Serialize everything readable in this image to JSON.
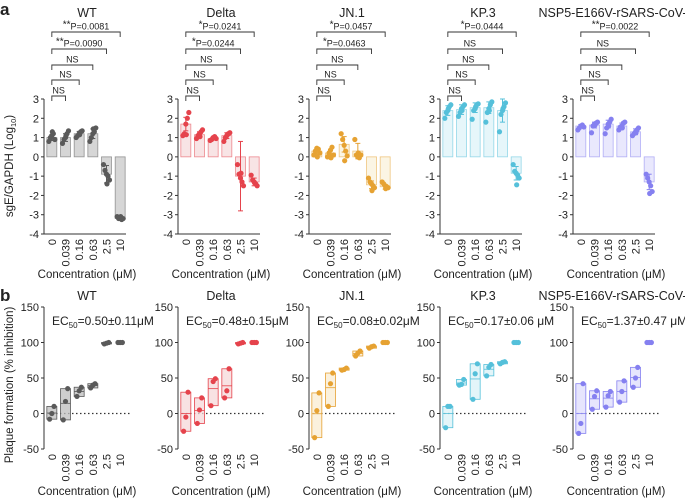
{
  "chart_data": [
    {
      "panel": "a",
      "type": "bar",
      "ylabel": {
        "main": "sgE/GAPDH (Log",
        "sub": "10",
        "end": ")"
      },
      "xlabel": "Concentration (μM)",
      "categories": [
        "0",
        "0.039",
        "0.16",
        "0.63",
        "2.5",
        "10"
      ],
      "ylim": [
        -4,
        3
      ],
      "yticks": [
        3,
        2,
        1,
        0,
        -1,
        -2,
        -3,
        -4
      ],
      "series": [
        {
          "name": "WT",
          "color": "#5a5a5a",
          "fill": "#d6d6d6",
          "values": [
            1.0,
            1.0,
            1.2,
            1.2,
            -0.9,
            -3.2
          ],
          "sd": [
            0.15,
            0.2,
            0.12,
            0.25,
            0.45,
            0.05
          ],
          "points": [
            [
              0.8,
              1.0,
              1.1,
              1.2,
              0.9,
              1.3
            ],
            [
              0.7,
              0.9,
              1.0,
              1.2,
              1.35,
              1.1
            ],
            [
              1.0,
              1.1,
              1.2,
              1.3,
              1.35,
              1.15
            ],
            [
              0.8,
              1.0,
              1.2,
              1.3,
              1.5,
              1.45
            ],
            [
              -0.4,
              -0.7,
              -0.9,
              -1.0,
              -1.2,
              -1.4
            ],
            [
              -3.1,
              -3.2,
              -3.15,
              -3.25,
              -3.2,
              -3.1
            ]
          ],
          "comparisons": [
            {
              "stars": "**",
              "text": "P=0.0081"
            },
            {
              "stars": "**",
              "text": "P=0.0090"
            },
            {
              "stars": "",
              "text": "NS"
            },
            {
              "stars": "",
              "text": "NS"
            },
            {
              "stars": "",
              "text": "NS"
            }
          ]
        },
        {
          "name": "Delta",
          "color": "#e5434c",
          "fill": "#f8e4e5",
          "values": [
            1.7,
            1.15,
            0.95,
            1.1,
            -1.0,
            -1.3
          ],
          "sd": [
            0.35,
            0.15,
            0.08,
            0.15,
            1.8,
            0.2
          ],
          "points": [
            [
              1.1,
              1.2,
              1.7,
              2.0,
              2.3,
              1.15
            ],
            [
              0.95,
              1.1,
              1.2,
              1.3,
              1.4,
              1.05
            ],
            [
              0.85,
              0.9,
              1.0,
              1.05,
              0.95,
              1.0
            ],
            [
              0.8,
              1.0,
              1.1,
              1.2,
              1.25,
              1.15
            ],
            [
              -0.4,
              -0.9,
              -1.1,
              -1.3,
              -1.5,
              -0.85
            ],
            [
              -0.95,
              -1.2,
              -1.3,
              -1.4,
              -1.5,
              -1.35
            ]
          ],
          "comparisons": [
            {
              "stars": "*",
              "text": "P=0.0241"
            },
            {
              "stars": "*",
              "text": "P=0.0244"
            },
            {
              "stars": "",
              "text": "NS"
            },
            {
              "stars": "",
              "text": "NS"
            },
            {
              "stars": "",
              "text": "NS"
            }
          ]
        },
        {
          "name": "JN.1",
          "color": "#e6a232",
          "fill": "#fbf5e4",
          "values": [
            0.3,
            0.2,
            0.65,
            0.3,
            -1.45,
            -1.55
          ],
          "sd": [
            0.15,
            0.18,
            0.4,
            0.4,
            0.2,
            0.12
          ],
          "points": [
            [
              0.1,
              0.3,
              0.45,
              0.4,
              0.2,
              0.0
            ],
            [
              0.0,
              0.2,
              0.35,
              0.5,
              0.1,
              -0.05
            ],
            [
              1.2,
              0.9,
              0.6,
              0.3,
              0.05,
              -0.2
            ],
            [
              0.9,
              0.1,
              0.0,
              -0.05,
              0.1,
              0.2
            ],
            [
              -1.1,
              -1.3,
              -1.4,
              -1.5,
              -1.6,
              -1.75
            ],
            [
              -1.3,
              -1.4,
              -1.5,
              -1.55,
              -1.6,
              -1.65
            ]
          ],
          "comparisons": [
            {
              "stars": "*",
              "text": "P=0.0457"
            },
            {
              "stars": "*",
              "text": "P=0.0463"
            },
            {
              "stars": "",
              "text": "NS"
            },
            {
              "stars": "",
              "text": "NS"
            },
            {
              "stars": "",
              "text": "NS"
            }
          ]
        },
        {
          "name": "KP.3",
          "color": "#55c0da",
          "fill": "#e6f6fa",
          "values": [
            2.4,
            2.45,
            2.55,
            2.55,
            2.4,
            -0.85
          ],
          "sd": [
            0.25,
            0.25,
            0.25,
            0.3,
            0.6,
            0.35
          ],
          "points": [
            [
              2.0,
              2.3,
              2.4,
              2.6,
              2.7,
              2.5
            ],
            [
              2.1,
              2.3,
              2.5,
              2.6,
              2.7,
              2.4
            ],
            [
              1.95,
              2.4,
              2.5,
              2.7,
              2.75,
              2.6
            ],
            [
              1.8,
              2.3,
              2.5,
              2.7,
              2.85,
              2.4
            ],
            [
              1.3,
              2.2,
              2.4,
              2.6,
              2.8,
              2.5
            ],
            [
              -0.4,
              -0.75,
              -0.85,
              -0.95,
              -1.1,
              -1.45
            ]
          ],
          "comparisons": [
            {
              "stars": "*",
              "text": "P=0.0444"
            },
            {
              "stars": "",
              "text": "NS"
            },
            {
              "stars": "",
              "text": "NS"
            },
            {
              "stars": "",
              "text": "NS"
            },
            {
              "stars": "",
              "text": "NS"
            }
          ]
        },
        {
          "name": "NSP5-E166V-rSARS-CoV-2",
          "color": "#8580f0",
          "fill": "#e9e8fd",
          "values": [
            1.6,
            1.65,
            1.7,
            1.6,
            1.3,
            -1.3
          ],
          "sd": [
            0.08,
            0.15,
            0.2,
            0.15,
            0.15,
            0.4
          ],
          "points": [
            [
              1.4,
              1.5,
              1.6,
              1.65,
              1.55,
              1.6
            ],
            [
              1.25,
              1.6,
              1.7,
              1.75,
              1.8,
              1.65
            ],
            [
              1.2,
              1.5,
              1.7,
              1.8,
              1.95,
              1.6
            ],
            [
              1.4,
              1.55,
              1.6,
              1.75,
              1.8,
              1.5
            ],
            [
              1.1,
              1.2,
              1.3,
              1.4,
              1.5,
              1.25
            ],
            [
              -0.9,
              -1.1,
              -1.3,
              -1.5,
              -1.8,
              -1.9
            ]
          ],
          "comparisons": [
            {
              "stars": "**",
              "text": "P=0.0022"
            },
            {
              "stars": "",
              "text": "NS"
            },
            {
              "stars": "",
              "text": "NS"
            },
            {
              "stars": "",
              "text": "NS"
            },
            {
              "stars": "",
              "text": "NS"
            }
          ]
        }
      ]
    },
    {
      "panel": "b",
      "type": "floating-bar",
      "ylabel": "Plaque formation (% inhibition)",
      "xlabel": "Concentration (μM)",
      "categories": [
        "0",
        "0.039",
        "0.16",
        "0.63",
        "2.5",
        "10"
      ],
      "ylim": [
        -50,
        150
      ],
      "yticks": [
        150,
        100,
        50,
        0,
        -50
      ],
      "reference_line": 0,
      "series": [
        {
          "name": "WT",
          "color": "#5a5a5a",
          "fill": "#bdbdbd",
          "ec50": {
            "prefix": "EC",
            "sub": "50",
            "value": "=0.50±0.11μM"
          },
          "points": [
            [
              -8,
              0,
              10
            ],
            [
              -9,
              17,
              35
            ],
            [
              24,
              32,
              37
            ],
            [
              36,
              40,
              42
            ],
            [
              98,
              99,
              100
            ],
            [
              100,
              100,
              100
            ]
          ]
        },
        {
          "name": "Delta",
          "color": "#e5434c",
          "fill": "#f6d8da",
          "ec50": {
            "prefix": "EC",
            "sub": "50",
            "value": "=0.48±0.15μM"
          },
          "points": [
            [
              -25,
              -5,
              30
            ],
            [
              -14,
              5,
              22
            ],
            [
              11,
              45,
              49
            ],
            [
              22,
              32,
              63
            ],
            [
              98,
              99,
              100
            ],
            [
              100,
              100,
              100
            ]
          ]
        },
        {
          "name": "JN.1",
          "color": "#e6a232",
          "fill": "#faecd2",
          "ec50": {
            "prefix": "EC",
            "sub": "50",
            "value": "=0.08±0.02μM"
          },
          "points": [
            [
              -34,
              4,
              29
            ],
            [
              10,
              42,
              57
            ],
            [
              61,
              62,
              64
            ],
            [
              81,
              85,
              88
            ],
            [
              92,
              94,
              95
            ],
            [
              100,
              100,
              100
            ]
          ]
        },
        {
          "name": "KP.3",
          "color": "#55c0da",
          "fill": "#d9f1f7",
          "ec50": {
            "prefix": "EC",
            "sub": "50",
            "value": "=0.17±0.06 μM"
          },
          "points": [
            [
              -20,
              10,
              10
            ],
            [
              40,
              41,
              48
            ],
            [
              20,
              56,
              70
            ],
            [
              53,
              65,
              69
            ],
            [
              70,
              72,
              73
            ],
            [
              100,
              100,
              100
            ]
          ]
        },
        {
          "name": "NSP5-E166V-rSARS-CoV-2",
          "color": "#8580f0",
          "fill": "#dddcfc",
          "ec50": {
            "prefix": "EC",
            "sub": "50",
            "value": "=1.37±0.47 μM"
          },
          "points": [
            [
              -28,
              -14,
              42
            ],
            [
              6,
              24,
              32
            ],
            [
              9,
              25,
              31
            ],
            [
              16,
              31,
              46
            ],
            [
              37,
              50,
              65
            ],
            [
              100,
              100,
              100
            ]
          ]
        }
      ]
    }
  ],
  "panel_labels": [
    "a",
    "b"
  ]
}
